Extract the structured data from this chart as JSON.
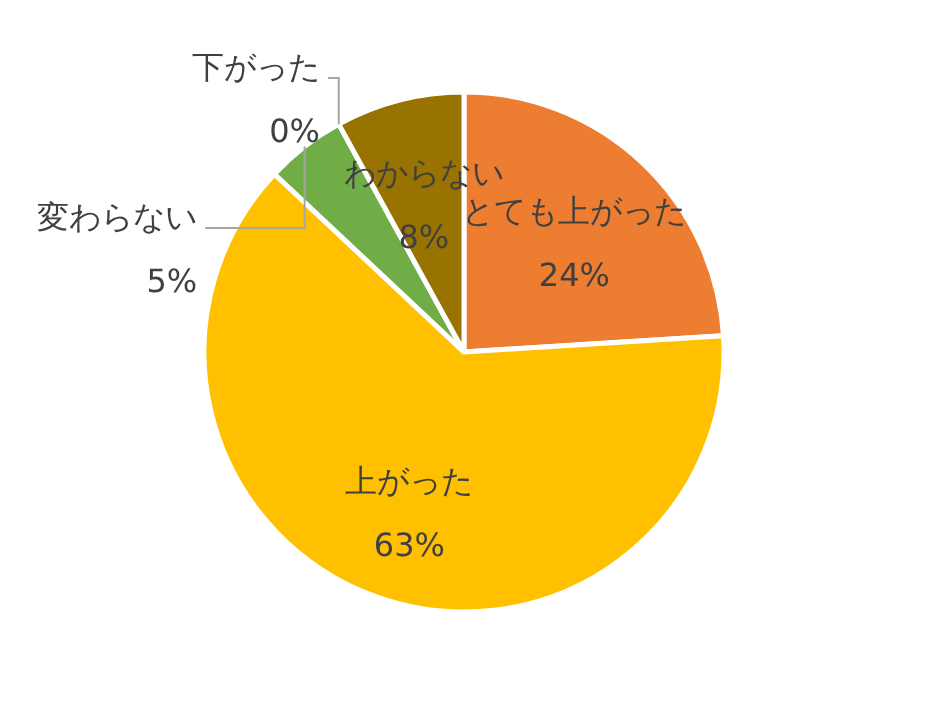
{
  "chart_data": {
    "type": "pie",
    "categories": [
      "とても上がった",
      "上がった",
      "変わらない",
      "下がった",
      "わからない"
    ],
    "values": [
      24,
      63,
      5,
      0,
      8
    ],
    "value_labels": [
      "24%",
      "63%",
      "5%",
      "0%",
      "8%"
    ],
    "colors": [
      "#ed7d31",
      "#ffc000",
      "#70ad47",
      null,
      "#997300"
    ]
  }
}
